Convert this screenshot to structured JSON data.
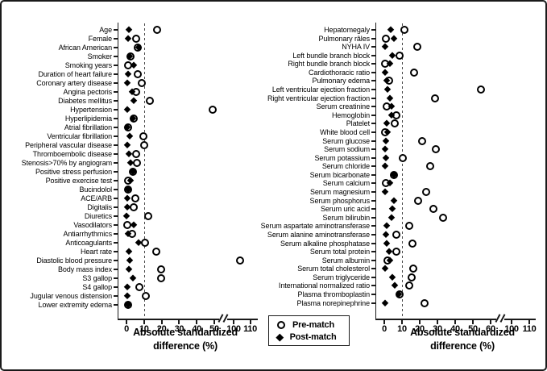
{
  "legend": {
    "items": [
      {
        "label": "Pre-match",
        "marker": "open-circle"
      },
      {
        "label": "Post-match",
        "marker": "filled-diamond"
      }
    ]
  },
  "axis": {
    "title_line1": "Absolute standardized",
    "title_line2": "difference (%)"
  },
  "chart_data": [
    {
      "type": "scatter",
      "panel": "left",
      "xlabel": "Absolute standardized difference (%)",
      "x_ticks": [
        0,
        10,
        20,
        30,
        40,
        50,
        100,
        110
      ],
      "axis_break_between": [
        50,
        100
      ],
      "reference_line_x": 10,
      "grid": false,
      "legend_position": "bottom-center",
      "series_names": [
        "Pre-match",
        "Post-match"
      ],
      "categories": [
        "Age",
        "Female",
        "African American",
        "Smoker",
        "Smoking years",
        "Duration of heart failure",
        "Coronary artery disease",
        "Angina pectoris",
        "Diabetes mellitus",
        "Hypertension",
        "Hyperlipidemia",
        "Atrial fibrillation",
        "Ventricular fibrillation",
        "Peripheral vascular disease",
        "Thromboembolic disease",
        "Stenosis>70% by angiogram",
        "Positive stress perfusion",
        "Positive exercise test",
        "Bucindolol",
        "ACE/ARB",
        "Digitalis",
        "Diuretics",
        "Vasodilators",
        "Antiarrhythmics",
        "Anticoagulants",
        "Heart rate",
        "Diastolic blood pressure",
        "Body mass index",
        "S3 gallop",
        "S4 gallop",
        "Jugular venous distension",
        "Lower extremity edema"
      ],
      "pre_match": [
        17.5,
        5.5,
        6.5,
        2.5,
        1,
        6.5,
        8.5,
        5.5,
        13.5,
        49,
        4,
        1,
        9.5,
        10,
        5.5,
        6,
        3.5,
        1,
        1,
        5,
        4,
        12.5,
        0.5,
        3,
        10.5,
        17,
        104,
        19.5,
        19.5,
        7.5,
        11,
        1
      ],
      "post_match": [
        1.5,
        1,
        7,
        2,
        4,
        1,
        0.5,
        3,
        4,
        0.5,
        3.8,
        0.5,
        2,
        0.5,
        1.5,
        2.5,
        3.5,
        2.5,
        0.8,
        0.5,
        0.3,
        0.2,
        4,
        1,
        7,
        1.5,
        2,
        1.5,
        3.5,
        0.5,
        0.5,
        1
      ]
    },
    {
      "type": "scatter",
      "panel": "right",
      "xlabel": "Absolute standardized difference (%)",
      "x_ticks": [
        0,
        10,
        20,
        30,
        40,
        50,
        60,
        100,
        110
      ],
      "axis_break_between": [
        60,
        100
      ],
      "reference_line_x": 10,
      "grid": false,
      "legend_position": "bottom-center",
      "series_names": [
        "Pre-match",
        "Post-match"
      ],
      "categories": [
        "Hepatomegaly",
        "Pulmonary râles",
        "NYHA IV",
        "Left bundle branch block",
        "Right bundle branch block",
        "Cardiothoracic ratio",
        "Pulmonary edema",
        "Left ventricular ejection fraction",
        "Right ventricular ejection fraction",
        "Serum creatinine",
        "Hemoglobin",
        "Platelet",
        "White blood cell",
        "Serum glucose",
        "Serum sodium",
        "Serum potassium",
        "Serum chloride",
        "Serum bicarbonate",
        "Serum calcium",
        "Serum magnesium",
        "Serum phosphorus",
        "Serum uric acid",
        "Serum bilirubin",
        "Serum aspartate aminotransferase",
        "Serum alanine aminotransferase",
        "Serum alkaline phosphatase",
        "Serum total protein",
        "Serum albumin",
        "Serum total cholesterol",
        "Serum triglyceride",
        "International normalized ratio",
        "Plasma thromboplastin",
        "Plasma norepinephrine"
      ],
      "pre_match": [
        11.5,
        1,
        18.5,
        8.5,
        0.5,
        17,
        2.5,
        54.5,
        28.5,
        1.5,
        7,
        6,
        0.5,
        21.5,
        29,
        10.5,
        26,
        5.5,
        1,
        23.5,
        19,
        27.5,
        33,
        14,
        7,
        16,
        7,
        2,
        16.5,
        15.5,
        14,
        8.5,
        22.5
      ],
      "post_match": [
        3.5,
        5.5,
        0.5,
        4.5,
        3,
        0.5,
        1.5,
        2,
        3,
        4,
        4,
        1.5,
        2,
        1,
        0.5,
        1,
        0.3,
        5.5,
        3,
        0.3,
        5.5,
        4.5,
        4,
        1.5,
        1,
        1.5,
        2.5,
        3,
        0.3,
        4.5,
        6,
        8,
        0.3
      ]
    }
  ]
}
